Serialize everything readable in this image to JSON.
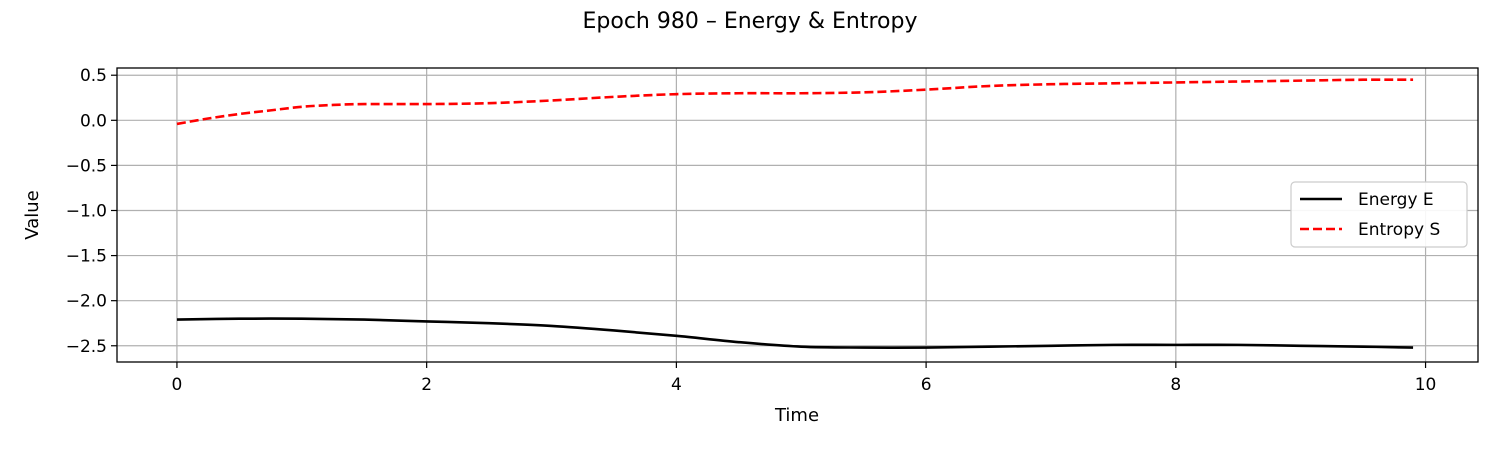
{
  "chart_data": {
    "type": "line",
    "title": "Epoch 980 – Energy & Entropy",
    "xlabel": "Time",
    "ylabel": "Value",
    "xlim": [
      -0.48,
      10.42
    ],
    "ylim": [
      -2.68,
      0.58
    ],
    "xticks": [
      0,
      2,
      4,
      6,
      8,
      10
    ],
    "xtick_labels": [
      "0",
      "2",
      "4",
      "6",
      "8",
      "10"
    ],
    "yticks": [
      0.5,
      0.0,
      -0.5,
      -1.0,
      -1.5,
      -2.0,
      -2.5
    ],
    "ytick_labels": [
      "0.5",
      "0.0",
      "−0.5",
      "−1.0",
      "−1.5",
      "−2.0",
      "−2.5"
    ],
    "grid": true,
    "legend_position": "center-right",
    "series": [
      {
        "name": "Energy E",
        "color": "#000000",
        "style": "solid",
        "x": [
          0.0,
          0.5,
          1.0,
          1.5,
          2.0,
          2.5,
          3.0,
          3.5,
          4.0,
          4.5,
          5.0,
          5.5,
          6.0,
          6.5,
          7.0,
          7.5,
          8.0,
          8.5,
          9.0,
          9.5,
          9.9
        ],
        "y": [
          -2.21,
          -2.2,
          -2.2,
          -2.21,
          -2.23,
          -2.25,
          -2.28,
          -2.33,
          -2.39,
          -2.46,
          -2.51,
          -2.52,
          -2.52,
          -2.51,
          -2.5,
          -2.49,
          -2.49,
          -2.49,
          -2.5,
          -2.51,
          -2.52
        ]
      },
      {
        "name": "Entropy S",
        "color": "#ff0000",
        "style": "dashed",
        "x": [
          0.0,
          0.25,
          0.5,
          0.75,
          1.0,
          1.25,
          1.5,
          2.0,
          2.5,
          3.0,
          3.5,
          4.0,
          4.5,
          5.0,
          5.5,
          6.0,
          6.5,
          7.0,
          7.5,
          8.0,
          8.5,
          9.0,
          9.5,
          9.9
        ],
        "y": [
          -0.04,
          0.02,
          0.07,
          0.11,
          0.15,
          0.17,
          0.18,
          0.18,
          0.19,
          0.22,
          0.26,
          0.29,
          0.3,
          0.3,
          0.31,
          0.34,
          0.38,
          0.4,
          0.41,
          0.42,
          0.43,
          0.44,
          0.45,
          0.45
        ]
      }
    ]
  }
}
